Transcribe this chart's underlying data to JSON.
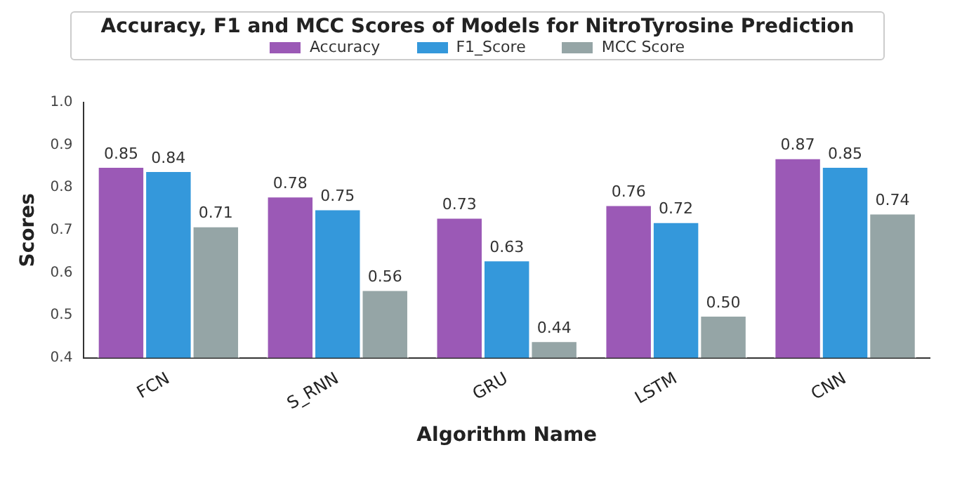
{
  "chart_data": {
    "type": "bar",
    "title": "Accuracy, F1 and MCC Scores of Models for NitroTyrosine Prediction",
    "xlabel": "Algorithm Name",
    "ylabel": "Scores",
    "categories": [
      "FCN",
      "S_RNN",
      "GRU",
      "LSTM",
      "CNN"
    ],
    "series": [
      {
        "name": "Accuracy",
        "color": "#9b59b6",
        "values": [
          0.85,
          0.78,
          0.73,
          0.76,
          0.87
        ],
        "value_labels": [
          "0.85",
          "0.78",
          "0.73",
          "0.76",
          "0.87"
        ]
      },
      {
        "name": "F1_Score",
        "color": "#3498db",
        "values": [
          0.84,
          0.75,
          0.63,
          0.72,
          0.85
        ],
        "value_labels": [
          "0.84",
          "0.75",
          "0.63",
          "0.72",
          "0.85"
        ]
      },
      {
        "name": "MCC Score",
        "color": "#95a5a6",
        "values": [
          0.71,
          0.56,
          0.44,
          0.5,
          0.74
        ],
        "value_labels": [
          "0.71",
          "0.56",
          "0.44",
          "0.50",
          "0.74"
        ]
      }
    ],
    "ylim": [
      0.4,
      1.0
    ],
    "yticks": [
      0.4,
      0.5,
      0.6,
      0.7,
      0.8,
      0.9,
      {
        "value": 1.0,
        "label": "1.0"
      }
    ],
    "grid": false,
    "legend": "top"
  }
}
